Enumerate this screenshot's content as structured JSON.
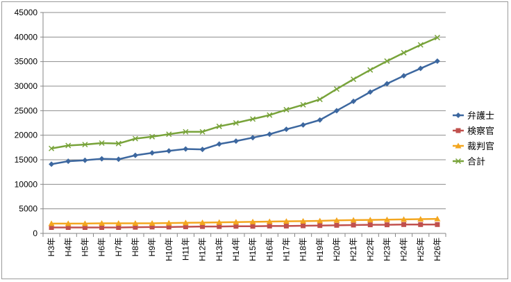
{
  "chart_data": {
    "type": "line",
    "title": "",
    "xlabel": "",
    "ylabel": "",
    "ylim": [
      0,
      45000
    ],
    "y_step": 5000,
    "grid": "horizontal",
    "legend_position": "right",
    "categories": [
      "H3年",
      "H4年",
      "H5年",
      "H6年",
      "H7年",
      "H8年",
      "H9年",
      "H10年",
      "H11年",
      "H12年",
      "H13年",
      "H14年",
      "H15年",
      "H16年",
      "H17年",
      "H18年",
      "H19年",
      "H20年",
      "H21年",
      "H22年",
      "H23年",
      "H24年",
      "H25年",
      "H26年"
    ],
    "y_ticks": [
      "0",
      "5000",
      "10000",
      "15000",
      "20000",
      "25000",
      "30000",
      "35000",
      "40000",
      "45000"
    ],
    "series": [
      {
        "name": "弁護士",
        "color": "#3c679f",
        "marker": "diamond",
        "values": [
          14100,
          14700,
          14900,
          15200,
          15100,
          15900,
          16400,
          16800,
          17200,
          17100,
          18200,
          18800,
          19500,
          20200,
          21200,
          22100,
          23100,
          25000,
          26900,
          28800,
          30500,
          32100,
          33600,
          35100
        ]
      },
      {
        "name": "検察官",
        "color": "#c0504d",
        "marker": "square",
        "values": [
          1200,
          1200,
          1200,
          1200,
          1200,
          1250,
          1300,
          1300,
          1350,
          1400,
          1400,
          1450,
          1450,
          1500,
          1500,
          1550,
          1600,
          1650,
          1700,
          1750,
          1750,
          1800,
          1800,
          1800
        ]
      },
      {
        "name": "裁判官",
        "color": "#f3a61f",
        "marker": "triangle",
        "values": [
          2000,
          2000,
          2000,
          2050,
          2050,
          2050,
          2050,
          2100,
          2150,
          2200,
          2250,
          2300,
          2350,
          2400,
          2450,
          2500,
          2550,
          2650,
          2700,
          2750,
          2800,
          2850,
          2900,
          2950
        ]
      },
      {
        "name": "合計",
        "color": "#78a33a",
        "marker": "x",
        "values": [
          17300,
          17900,
          18100,
          18400,
          18300,
          19300,
          19700,
          20200,
          20700,
          20700,
          21800,
          22500,
          23300,
          24100,
          25200,
          26200,
          27300,
          29400,
          31400,
          33300,
          35100,
          36800,
          38400,
          39900
        ]
      }
    ]
  }
}
